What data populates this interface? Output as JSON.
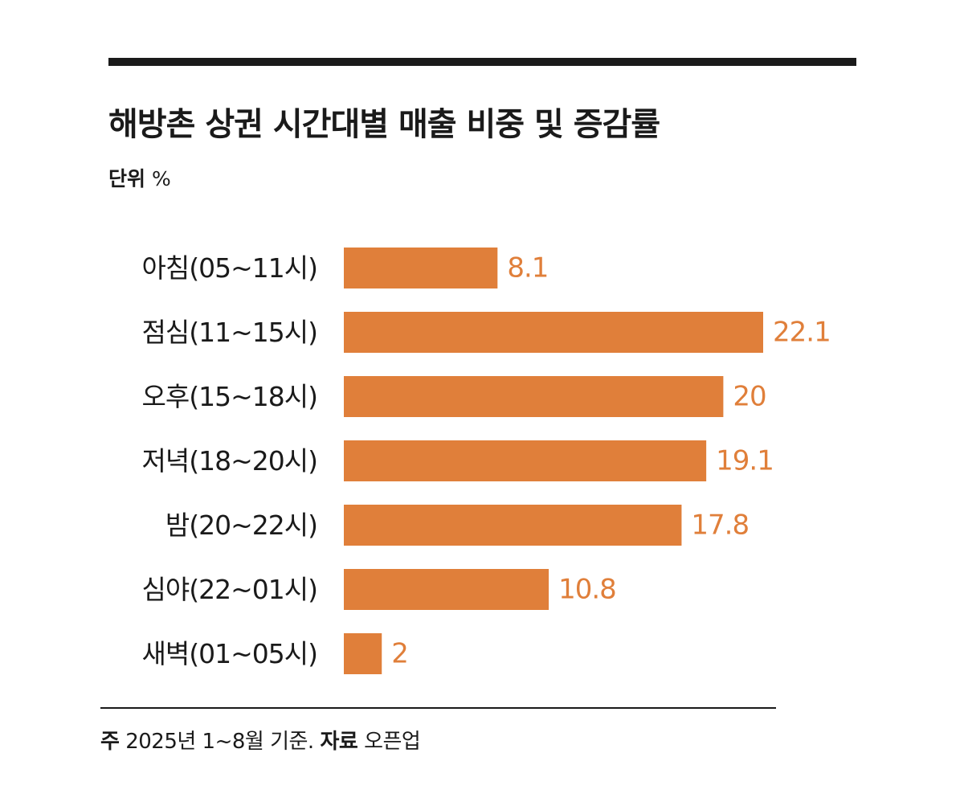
{
  "chart_data": {
    "type": "bar",
    "orientation": "horizontal",
    "title": "해방촌 상권 시간대별 매출 비중 및 증감률",
    "unit_label": "단위",
    "unit": "%",
    "categories": [
      "아침(05~11시)",
      "점심(11~15시)",
      "오후(15~18시)",
      "저녁(18~20시)",
      "밤(20~22시)",
      "심야(22~01시)",
      "새벽(01~05시)"
    ],
    "values": [
      8.1,
      22.1,
      20,
      19.1,
      17.8,
      10.8,
      2
    ],
    "value_labels": [
      "8.1",
      "22.1",
      "20",
      "19.1",
      "17.8",
      "10.8",
      "2"
    ],
    "xlim": [
      0,
      22.1
    ],
    "grid": false,
    "bar_color": "#e07f3a"
  },
  "footnote": {
    "note_label": "주",
    "note_text": "2025년 1~8월 기준.",
    "source_label": "자료",
    "source_text": "오픈업"
  }
}
